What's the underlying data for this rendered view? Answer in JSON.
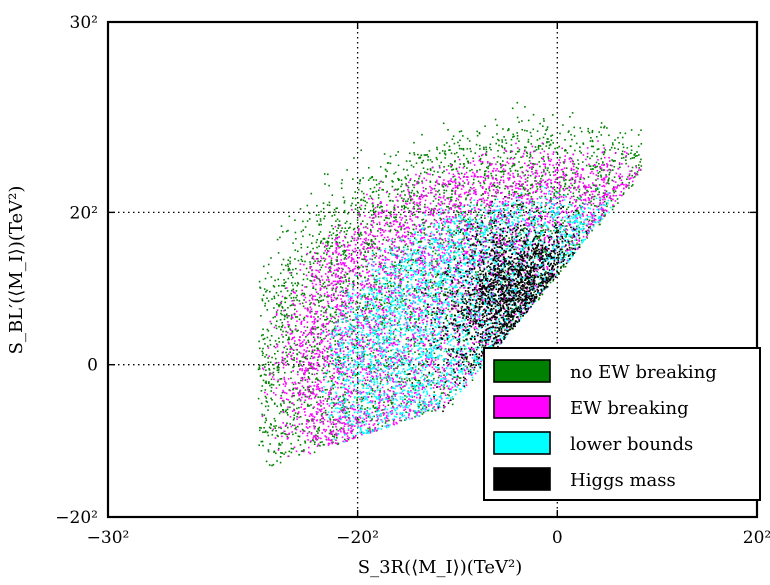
{
  "chart_data": {
    "type": "scatter",
    "xlabel": "S_3R(⟨M_I⟩)(TeV²)",
    "ylabel": "S_BL′(⟨M_I⟩)(TeV²)",
    "x_axis_scale": "signed-square",
    "y_axis_scale": "signed-square",
    "xlim": [
      -30,
      20
    ],
    "ylim": [
      -20,
      30
    ],
    "x_ticks": [
      {
        "value": -30,
        "label": "−30²"
      },
      {
        "value": -20,
        "label": "−20²"
      },
      {
        "value": 0,
        "label": "0"
      },
      {
        "value": 20,
        "label": "20²"
      }
    ],
    "y_ticks": [
      {
        "value": -20,
        "label": "−20²"
      },
      {
        "value": 0,
        "label": "0"
      },
      {
        "value": 20,
        "label": "20²"
      },
      {
        "value": 30,
        "label": "30²"
      }
    ],
    "grid": true,
    "grid_style": "dotted",
    "legend_position": "lower-right",
    "series": [
      {
        "name": "no EW breaking",
        "color": "#008000",
        "region": "broad banana-shaped band from about (-22, -20) up to (0, 27), lower edge along the line joining (-20, -20) and (10, 20)"
      },
      {
        "name": "EW breaking",
        "color": "#ff00ff",
        "region": "slightly narrower band inside the green one, peaking near (0, 25)"
      },
      {
        "name": "lower bounds",
        "color": "#00ffff",
        "region": "inner band from about (-17, -17) up to (-2, 18)"
      },
      {
        "name": "Higgs mass",
        "color": "#000000",
        "region": "dense core around (-8, 14), extending down toward (-15, 0)"
      }
    ]
  }
}
